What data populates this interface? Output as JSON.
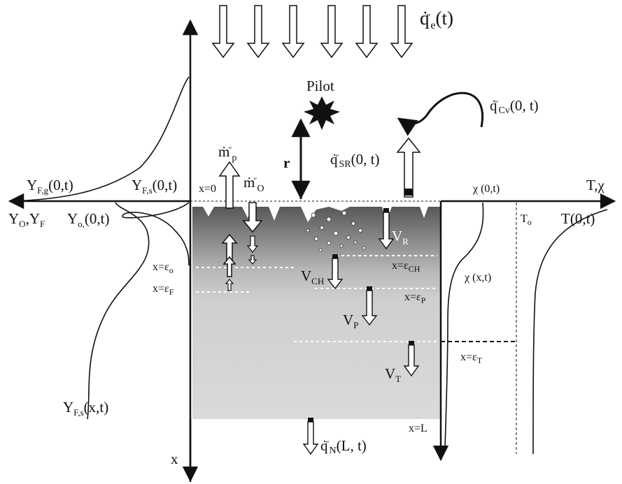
{
  "title": "",
  "labels": {
    "q_e_main": "q̇″e(t)",
    "pilot": "Pilot",
    "q_cv": "q̇″Cv(0, t)",
    "q_sr": "q̇″SR(0, t)",
    "r": "r",
    "m_p": "ṁ″p",
    "m_o": "ṁ″O",
    "x0": "x=0",
    "yfg": "YF,g(0,t)",
    "yfs0": "YF,s(0,t)",
    "yo_yf": "YO,YF",
    "yo0": "Yo,(0,t)",
    "chi0": "χ (0,t)",
    "t_chi": "T,χ",
    "t0": "To",
    "T0t": "T(0,t)",
    "x_eps_o": "x=εo",
    "x_eps_f": "x=εF",
    "v_r": "VR",
    "x_eps_ch": "x=εCH",
    "v_ch": "VCH",
    "chi_xt": "χ (x,t)",
    "x_eps_p": "x=εP",
    "v_p": "VP",
    "x_eps_t": "x=εT",
    "v_t": "VT",
    "yfs_xt": "YF,s(x,t)",
    "x_L": "x=L",
    "q_n": "q̇″N(L, t)",
    "x_axis": "x"
  },
  "colors": {
    "ink": "#111111",
    "slab_top": "#5a5a5a",
    "slab_bottom": "#d9d9d9",
    "dash": "#ffffff"
  }
}
